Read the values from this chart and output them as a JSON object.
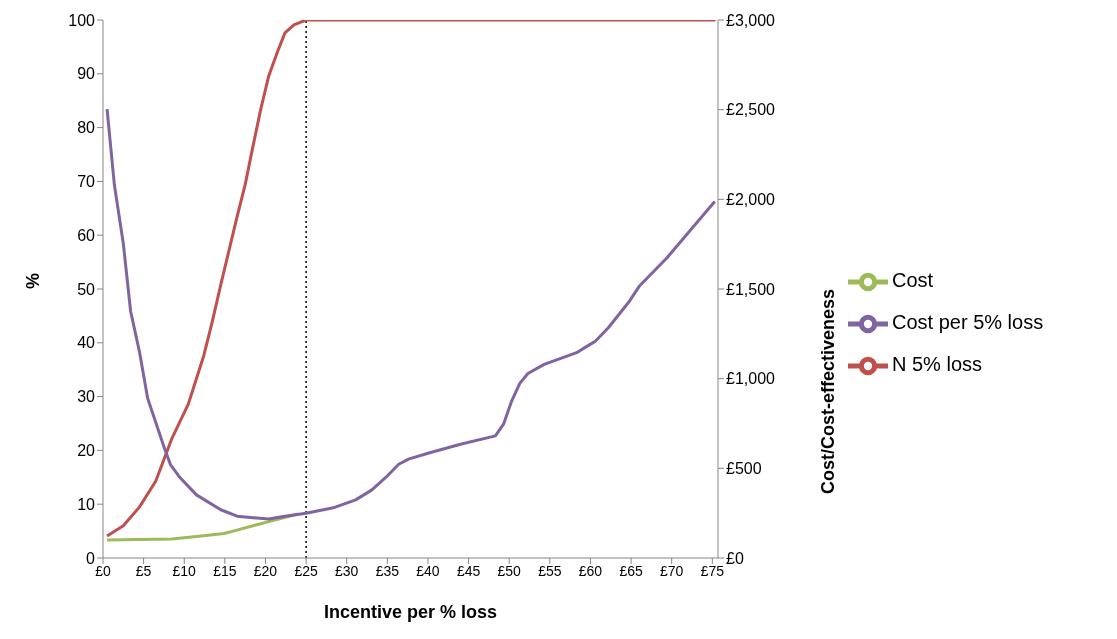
{
  "chart_data": {
    "type": "line",
    "xlabel": "Incentive per % loss",
    "ylabel": "%",
    "y2label": "Cost/Cost-effectiveness",
    "xlim": [
      0,
      75.7
    ],
    "xticks": [
      {
        "value": 0,
        "label": "£0"
      },
      {
        "value": 5,
        "label": "£5"
      },
      {
        "value": 10,
        "label": "£10"
      },
      {
        "value": 15,
        "label": "£15"
      },
      {
        "value": 20,
        "label": "£20"
      },
      {
        "value": 25,
        "label": "£25"
      },
      {
        "value": 30,
        "label": "£30"
      },
      {
        "value": 35,
        "label": "£35"
      },
      {
        "value": 40,
        "label": "£40"
      },
      {
        "value": 45,
        "label": "£45"
      },
      {
        "value": 50,
        "label": "£50"
      },
      {
        "value": 55,
        "label": "£55"
      },
      {
        "value": 60,
        "label": "£60"
      },
      {
        "value": 65,
        "label": "£65"
      },
      {
        "value": 70,
        "label": "£70"
      },
      {
        "value": 75,
        "label": "£75"
      }
    ],
    "ylim": [
      0,
      100
    ],
    "yticks": [
      0,
      10,
      20,
      30,
      40,
      50,
      60,
      70,
      80,
      90,
      100
    ],
    "y2lim": [
      0,
      3000
    ],
    "y2ticks": [
      {
        "value": 0,
        "label": "£0"
      },
      {
        "value": 500,
        "label": "£500"
      },
      {
        "value": 1000,
        "label": "£1,000"
      },
      {
        "value": 1500,
        "label": "£1,500"
      },
      {
        "value": 2000,
        "label": "£2,000"
      },
      {
        "value": 2500,
        "label": "£2,500"
      },
      {
        "value": 3000,
        "label": "£3,000"
      }
    ],
    "series": [
      {
        "name": "N 5% loss",
        "color": "#c0504d",
        "x": [
          0.5,
          2.5,
          4.5,
          6.5,
          8.5,
          10.5,
          12.4,
          13.4,
          14.5,
          16.5,
          17.5,
          18.4,
          19.4,
          20.4,
          21.5,
          22.4,
          23.5,
          24.5,
          25,
          75.4
        ],
        "values": [
          4.1,
          6,
          9.5,
          14.3,
          22.3,
          28.6,
          37.6,
          43.6,
          50.8,
          63.4,
          69.4,
          76.1,
          83.3,
          89.6,
          94.2,
          97.6,
          99.1,
          99.7,
          100,
          100
        ]
      },
      {
        "name": "Cost",
        "color": "#9bbb59",
        "axis": "y2",
        "x": [
          0.5,
          8.5,
          12.4,
          14.9,
          16.6,
          18.7,
          20.4,
          22.6,
          24
        ],
        "values": [
          100,
          106,
          124,
          137,
          157,
          183,
          203,
          229,
          245
        ]
      },
      {
        "name": "Cost per 5% loss",
        "color": "#8064a2",
        "axis": "y2",
        "x": [
          0.5,
          1.4,
          2.5,
          3.4,
          4.5,
          5.5,
          7.5,
          8.3,
          9.5,
          11.5,
          14.5,
          16.5,
          20.4,
          22.4,
          25,
          28.5,
          31.1,
          33.1,
          34.8,
          36.4,
          37.6,
          40,
          44,
          48.3,
          49.3,
          50.3,
          51.3,
          52.3,
          54.3,
          58.3,
          59.4,
          60.6,
          62.2,
          64.8,
          66,
          69.4,
          75.3
        ],
        "values": [
          2503,
          2081,
          1753,
          1376,
          1147,
          890,
          620,
          521,
          447,
          352,
          269,
          233,
          217,
          233,
          250,
          282,
          324,
          380,
          449,
          523,
          551,
          584,
          634,
          681,
          746,
          875,
          974,
          1029,
          1080,
          1145,
          1176,
          1209,
          1284,
          1432,
          1515,
          1673,
          1988
        ]
      }
    ],
    "ref_lines": [
      {
        "axis": "x",
        "value": 25,
        "color": "#000000",
        "line_style": "dotted"
      }
    ],
    "grid": false,
    "legend": "right",
    "marker": "none",
    "line_style": "solid"
  }
}
